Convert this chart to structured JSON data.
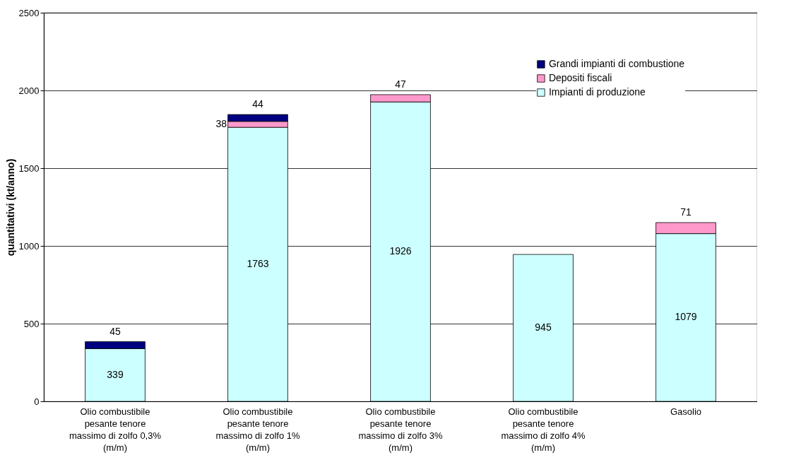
{
  "chart_data": {
    "type": "bar",
    "stacked": true,
    "ylabel": "quantitativi (kt/anno)",
    "categories": [
      "Olio combustibile pesante tenore massimo di zolfo 0,3% (m/m)",
      "Olio combustibile pesante tenore massimo di zolfo 1% (m/m)",
      "Olio combustibile pesante tenore massimo di zolfo 3% (m/m)",
      "Olio combustibile pesante tenore massimo di zolfo 4% (m/m)",
      "Gasolio"
    ],
    "series": [
      {
        "name": "Impianti di produzione",
        "color": "#ccffff",
        "values": [
          339,
          1763,
          1926,
          945,
          1079
        ],
        "value_labels": [
          "339",
          "1763",
          "1926",
          "945",
          "1079"
        ]
      },
      {
        "name": "Depositi fiscali",
        "color": "#ff99cc",
        "values": [
          null,
          38,
          47,
          null,
          71
        ],
        "value_labels": [
          null,
          "38",
          "47",
          null,
          "71"
        ]
      },
      {
        "name": "Grandi impianti di combustione",
        "color": "#000080",
        "values": [
          45,
          44,
          null,
          null,
          null
        ],
        "value_labels": [
          "45",
          "44",
          null,
          null,
          null
        ]
      }
    ],
    "ylim": [
      0,
      2500
    ],
    "yticks": [
      0,
      500,
      1000,
      1500,
      2000,
      2500
    ],
    "grid": "y",
    "legend": "top right"
  }
}
